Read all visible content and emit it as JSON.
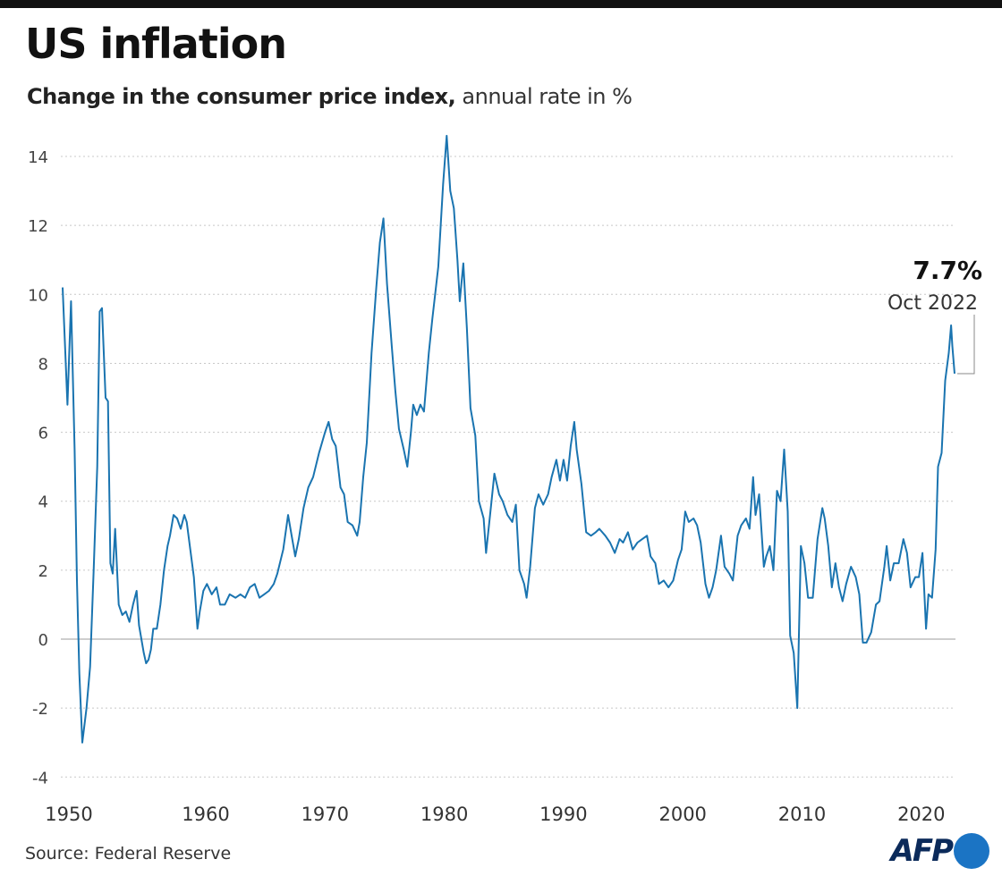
{
  "title": "US inflation",
  "subtitle_bold": "Change in the consumer price index,",
  "subtitle_rest": " annual rate in %",
  "source": "Source: Federal Reserve",
  "logo": "AFP",
  "colors": {
    "line": "#1a74b0",
    "grid": "#c8c8c8",
    "zero": "#bdbdbd",
    "logo_text": "#0b2a5a",
    "logo_dot": "#1b74c4"
  },
  "annotation": {
    "value": "7.7%",
    "date": "Oct 2022"
  },
  "chart_data": {
    "type": "line",
    "title": "US inflation",
    "subtitle": "Change in the consumer price index, annual rate in %",
    "xlabel": "",
    "ylabel": "",
    "xlim": [
      1948,
      2022.8
    ],
    "ylim": [
      -4,
      14.5
    ],
    "grid": true,
    "yticks": [
      -4,
      -2,
      0,
      2,
      4,
      6,
      8,
      10,
      12,
      14
    ],
    "ytick_labels": [
      "-4",
      "-2",
      "0",
      "2",
      "4",
      "6",
      "8",
      "10",
      "12",
      "14"
    ],
    "xticks": [
      1950,
      1960,
      1970,
      1980,
      1990,
      2000,
      2010,
      2020
    ],
    "xtick_labels": [
      "1950",
      "1960",
      "1970",
      "1980",
      "1990",
      "2000",
      "2010",
      "2020"
    ],
    "series": [
      {
        "points": [
          [
            1948.0,
            10.2
          ],
          [
            1948.4,
            6.8
          ],
          [
            1948.7,
            9.8
          ],
          [
            1949.0,
            5.5
          ],
          [
            1949.2,
            1.7
          ],
          [
            1949.4,
            -1.0
          ],
          [
            1949.65,
            -3.0
          ],
          [
            1950.0,
            -2.0
          ],
          [
            1950.3,
            -0.8
          ],
          [
            1950.6,
            2.0
          ],
          [
            1950.9,
            5.0
          ],
          [
            1951.1,
            9.5
          ],
          [
            1951.3,
            9.6
          ],
          [
            1951.6,
            7.0
          ],
          [
            1951.8,
            6.9
          ],
          [
            1952.0,
            2.2
          ],
          [
            1952.2,
            1.9
          ],
          [
            1952.4,
            3.2
          ],
          [
            1952.7,
            1.0
          ],
          [
            1953.0,
            0.7
          ],
          [
            1953.3,
            0.8
          ],
          [
            1953.6,
            0.5
          ],
          [
            1953.9,
            1.0
          ],
          [
            1954.2,
            1.4
          ],
          [
            1954.4,
            0.4
          ],
          [
            1954.8,
            -0.4
          ],
          [
            1955.0,
            -0.7
          ],
          [
            1955.2,
            -0.6
          ],
          [
            1955.4,
            -0.3
          ],
          [
            1955.6,
            0.3
          ],
          [
            1955.9,
            0.3
          ],
          [
            1956.2,
            1.0
          ],
          [
            1956.5,
            2.0
          ],
          [
            1956.8,
            2.7
          ],
          [
            1957.0,
            3.0
          ],
          [
            1957.3,
            3.6
          ],
          [
            1957.6,
            3.5
          ],
          [
            1957.9,
            3.2
          ],
          [
            1958.2,
            3.6
          ],
          [
            1958.4,
            3.4
          ],
          [
            1958.7,
            2.6
          ],
          [
            1959.0,
            1.8
          ],
          [
            1959.3,
            0.3
          ],
          [
            1959.5,
            0.8
          ],
          [
            1959.8,
            1.4
          ],
          [
            1960.1,
            1.6
          ],
          [
            1960.5,
            1.3
          ],
          [
            1960.9,
            1.5
          ],
          [
            1961.2,
            1.0
          ],
          [
            1961.6,
            1.0
          ],
          [
            1962.0,
            1.3
          ],
          [
            1962.5,
            1.2
          ],
          [
            1962.9,
            1.3
          ],
          [
            1963.3,
            1.2
          ],
          [
            1963.7,
            1.5
          ],
          [
            1964.1,
            1.6
          ],
          [
            1964.5,
            1.2
          ],
          [
            1964.9,
            1.3
          ],
          [
            1965.3,
            1.4
          ],
          [
            1965.7,
            1.6
          ],
          [
            1966.0,
            1.9
          ],
          [
            1966.5,
            2.6
          ],
          [
            1966.9,
            3.6
          ],
          [
            1967.2,
            3.0
          ],
          [
            1967.5,
            2.4
          ],
          [
            1967.8,
            2.9
          ],
          [
            1968.2,
            3.8
          ],
          [
            1968.6,
            4.4
          ],
          [
            1969.0,
            4.7
          ],
          [
            1969.5,
            5.4
          ],
          [
            1970.0,
            6.0
          ],
          [
            1970.3,
            6.3
          ],
          [
            1970.6,
            5.8
          ],
          [
            1970.9,
            5.6
          ],
          [
            1971.3,
            4.4
          ],
          [
            1971.6,
            4.2
          ],
          [
            1971.9,
            3.4
          ],
          [
            1972.3,
            3.3
          ],
          [
            1972.7,
            3.0
          ],
          [
            1972.9,
            3.4
          ],
          [
            1973.2,
            4.7
          ],
          [
            1973.5,
            5.7
          ],
          [
            1973.9,
            8.3
          ],
          [
            1974.3,
            10.2
          ],
          [
            1974.6,
            11.5
          ],
          [
            1974.9,
            12.2
          ],
          [
            1975.2,
            10.3
          ],
          [
            1975.6,
            8.5
          ],
          [
            1975.9,
            7.2
          ],
          [
            1976.2,
            6.1
          ],
          [
            1976.6,
            5.5
          ],
          [
            1976.9,
            5.0
          ],
          [
            1977.2,
            6.0
          ],
          [
            1977.4,
            6.8
          ],
          [
            1977.7,
            6.5
          ],
          [
            1978.0,
            6.8
          ],
          [
            1978.3,
            6.6
          ],
          [
            1978.7,
            8.3
          ],
          [
            1979.0,
            9.3
          ],
          [
            1979.5,
            10.8
          ],
          [
            1979.9,
            13.2
          ],
          [
            1980.2,
            14.6
          ],
          [
            1980.5,
            13.0
          ],
          [
            1980.8,
            12.5
          ],
          [
            1981.1,
            11.0
          ],
          [
            1981.3,
            9.8
          ],
          [
            1981.6,
            10.9
          ],
          [
            1981.9,
            9.0
          ],
          [
            1982.2,
            6.7
          ],
          [
            1982.6,
            5.9
          ],
          [
            1982.9,
            4.0
          ],
          [
            1983.3,
            3.5
          ],
          [
            1983.5,
            2.5
          ],
          [
            1983.9,
            3.8
          ],
          [
            1984.2,
            4.8
          ],
          [
            1984.6,
            4.2
          ],
          [
            1984.9,
            4.0
          ],
          [
            1985.3,
            3.6
          ],
          [
            1985.7,
            3.4
          ],
          [
            1986.0,
            3.9
          ],
          [
            1986.3,
            2.0
          ],
          [
            1986.7,
            1.6
          ],
          [
            1986.9,
            1.2
          ],
          [
            1987.2,
            2.1
          ],
          [
            1987.6,
            3.8
          ],
          [
            1987.9,
            4.2
          ],
          [
            1988.3,
            3.9
          ],
          [
            1988.7,
            4.2
          ],
          [
            1989.0,
            4.7
          ],
          [
            1989.4,
            5.2
          ],
          [
            1989.7,
            4.6
          ],
          [
            1990.0,
            5.2
          ],
          [
            1990.3,
            4.6
          ],
          [
            1990.6,
            5.6
          ],
          [
            1990.9,
            6.3
          ],
          [
            1991.1,
            5.5
          ],
          [
            1991.5,
            4.5
          ],
          [
            1991.9,
            3.1
          ],
          [
            1992.3,
            3.0
          ],
          [
            1992.7,
            3.1
          ],
          [
            1993.0,
            3.2
          ],
          [
            1993.5,
            3.0
          ],
          [
            1993.9,
            2.8
          ],
          [
            1994.3,
            2.5
          ],
          [
            1994.7,
            2.9
          ],
          [
            1995.0,
            2.8
          ],
          [
            1995.4,
            3.1
          ],
          [
            1995.8,
            2.6
          ],
          [
            1996.2,
            2.8
          ],
          [
            1996.6,
            2.9
          ],
          [
            1997.0,
            3.0
          ],
          [
            1997.3,
            2.4
          ],
          [
            1997.7,
            2.2
          ],
          [
            1998.0,
            1.6
          ],
          [
            1998.4,
            1.7
          ],
          [
            1998.8,
            1.5
          ],
          [
            1999.2,
            1.7
          ],
          [
            1999.6,
            2.3
          ],
          [
            1999.9,
            2.6
          ],
          [
            2000.2,
            3.7
          ],
          [
            2000.5,
            3.4
          ],
          [
            2000.9,
            3.5
          ],
          [
            2001.2,
            3.3
          ],
          [
            2001.5,
            2.8
          ],
          [
            2001.9,
            1.6
          ],
          [
            2002.2,
            1.2
          ],
          [
            2002.5,
            1.5
          ],
          [
            2002.8,
            2.0
          ],
          [
            2003.2,
            3.0
          ],
          [
            2003.5,
            2.1
          ],
          [
            2003.9,
            1.9
          ],
          [
            2004.2,
            1.7
          ],
          [
            2004.6,
            3.0
          ],
          [
            2004.9,
            3.3
          ],
          [
            2005.3,
            3.5
          ],
          [
            2005.6,
            3.2
          ],
          [
            2005.9,
            4.7
          ],
          [
            2006.1,
            3.6
          ],
          [
            2006.4,
            4.2
          ],
          [
            2006.8,
            2.1
          ],
          [
            2007.0,
            2.4
          ],
          [
            2007.3,
            2.7
          ],
          [
            2007.6,
            2.0
          ],
          [
            2007.9,
            4.3
          ],
          [
            2008.2,
            4.0
          ],
          [
            2008.5,
            5.5
          ],
          [
            2008.8,
            3.7
          ],
          [
            2009.0,
            0.1
          ],
          [
            2009.3,
            -0.4
          ],
          [
            2009.6,
            -2.0
          ],
          [
            2009.9,
            2.7
          ],
          [
            2010.2,
            2.2
          ],
          [
            2010.5,
            1.2
          ],
          [
            2010.9,
            1.2
          ],
          [
            2011.3,
            2.9
          ],
          [
            2011.7,
            3.8
          ],
          [
            2011.9,
            3.5
          ],
          [
            2012.2,
            2.7
          ],
          [
            2012.5,
            1.5
          ],
          [
            2012.8,
            2.2
          ],
          [
            2013.1,
            1.5
          ],
          [
            2013.4,
            1.1
          ],
          [
            2013.7,
            1.6
          ],
          [
            2014.1,
            2.1
          ],
          [
            2014.5,
            1.8
          ],
          [
            2014.8,
            1.3
          ],
          [
            2015.1,
            -0.1
          ],
          [
            2015.4,
            -0.1
          ],
          [
            2015.8,
            0.2
          ],
          [
            2016.2,
            1.0
          ],
          [
            2016.5,
            1.1
          ],
          [
            2016.9,
            2.1
          ],
          [
            2017.1,
            2.7
          ],
          [
            2017.4,
            1.7
          ],
          [
            2017.7,
            2.2
          ],
          [
            2018.1,
            2.2
          ],
          [
            2018.5,
            2.9
          ],
          [
            2018.8,
            2.5
          ],
          [
            2019.1,
            1.5
          ],
          [
            2019.5,
            1.8
          ],
          [
            2019.8,
            1.8
          ],
          [
            2020.1,
            2.5
          ],
          [
            2020.4,
            0.3
          ],
          [
            2020.6,
            1.3
          ],
          [
            2020.9,
            1.2
          ],
          [
            2021.2,
            2.6
          ],
          [
            2021.4,
            5.0
          ],
          [
            2021.7,
            5.4
          ],
          [
            2022.0,
            7.5
          ],
          [
            2022.3,
            8.3
          ],
          [
            2022.5,
            9.1
          ],
          [
            2022.6,
            8.5
          ],
          [
            2022.79,
            7.7
          ]
        ]
      }
    ],
    "annotations": [
      {
        "x": 2022.79,
        "y": 7.7,
        "label": "7.7%",
        "sublabel": "Oct 2022"
      }
    ]
  }
}
